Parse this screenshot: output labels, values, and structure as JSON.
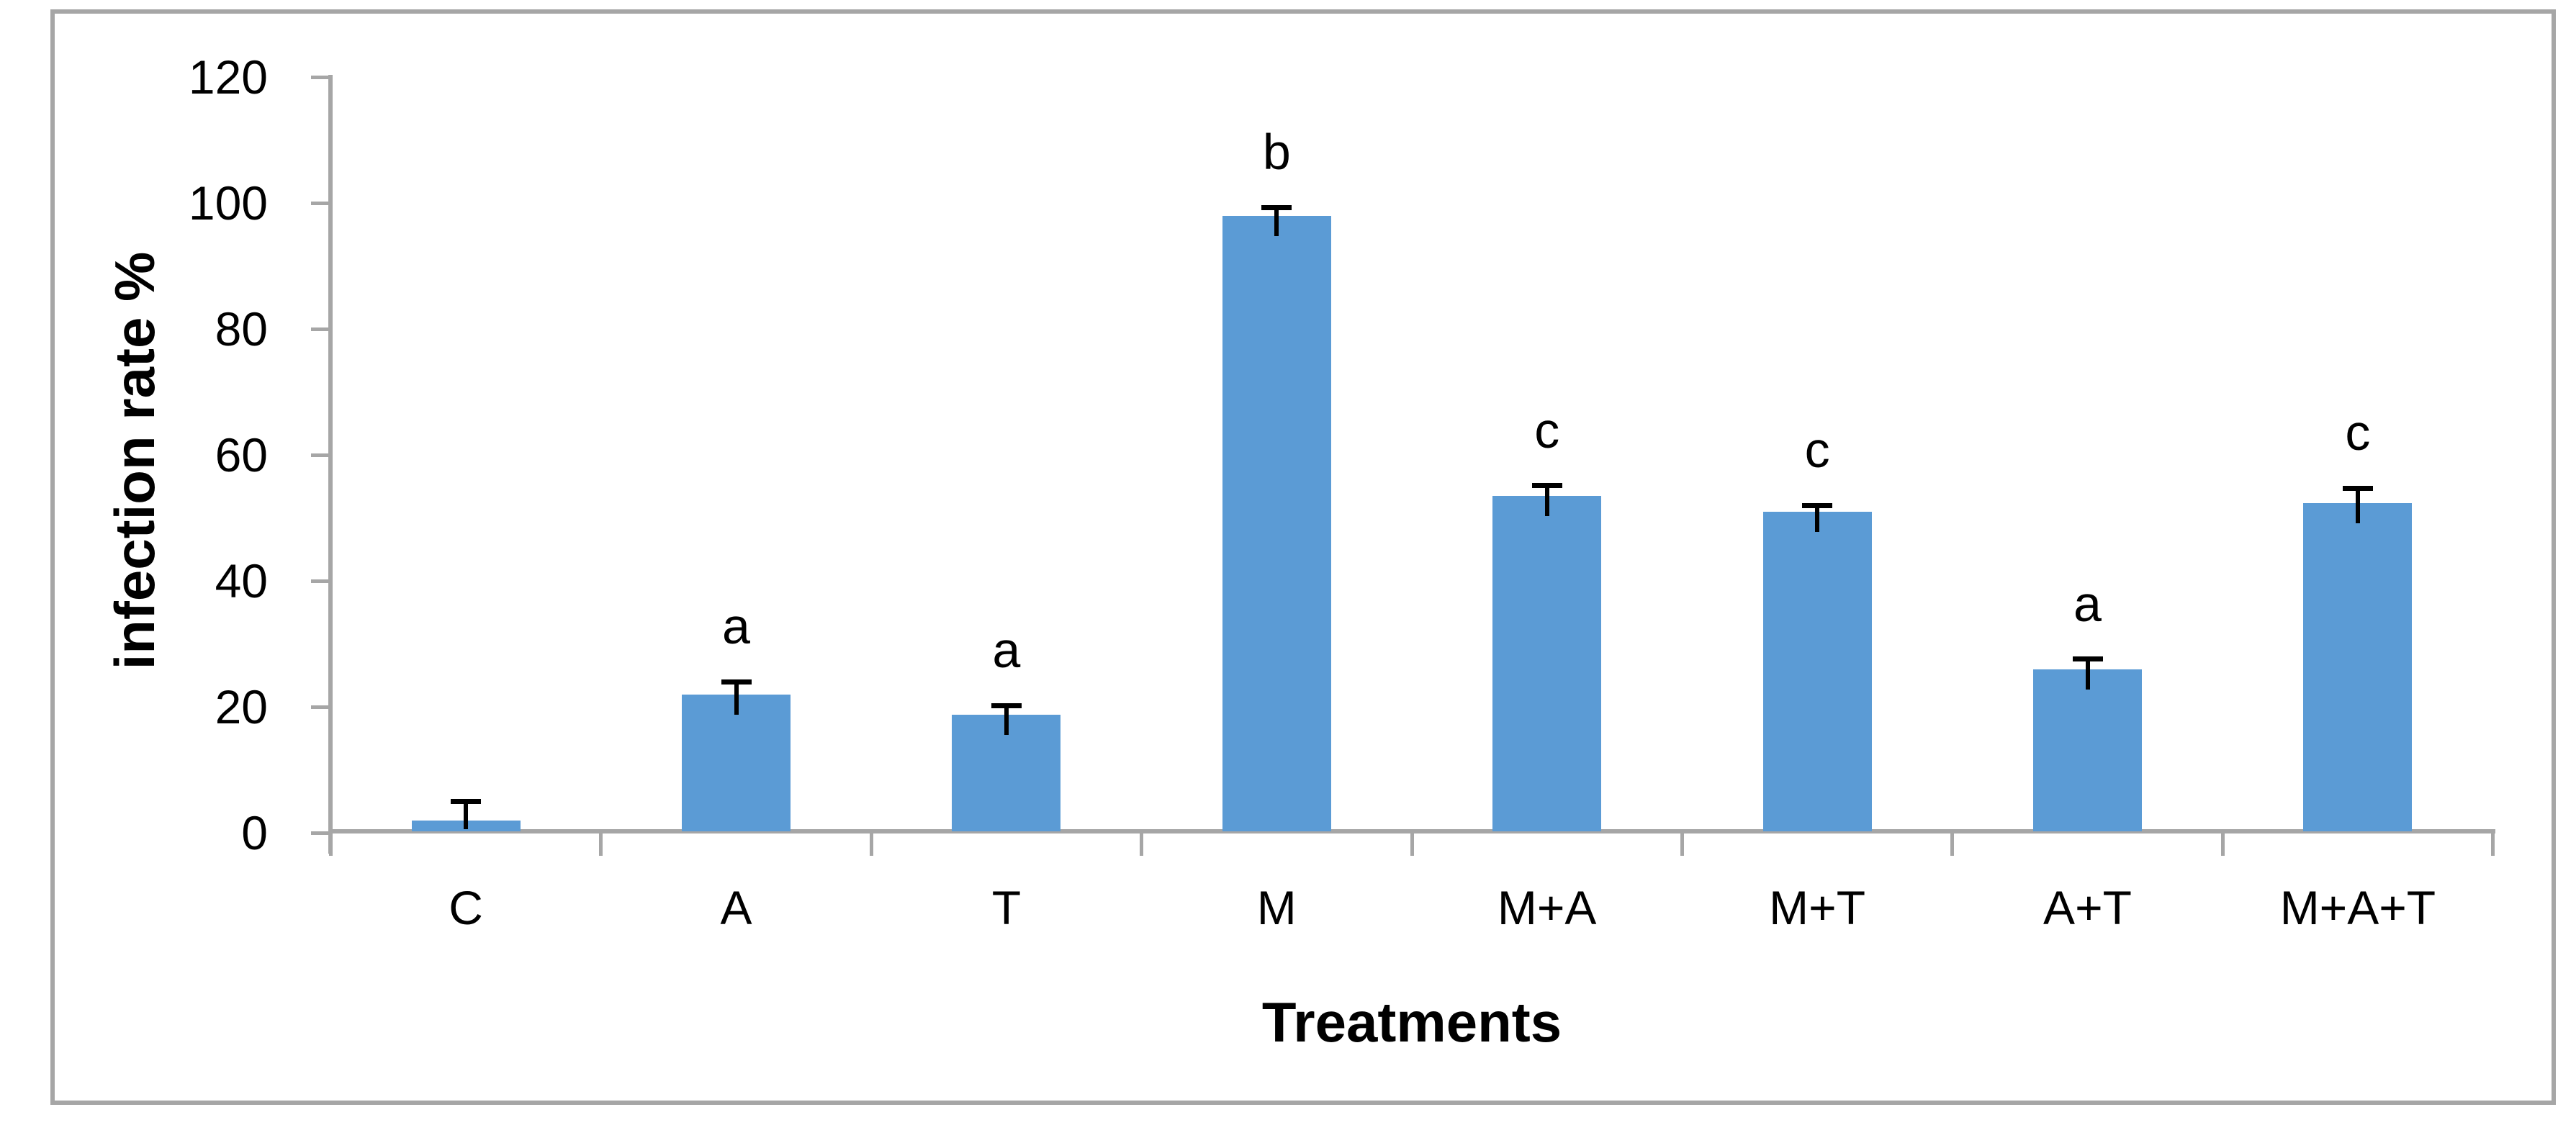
{
  "chart_data": {
    "type": "bar",
    "title": "",
    "xlabel": "Treatments",
    "ylabel": "infection rate %",
    "categories": [
      "C",
      "A",
      "T",
      "M",
      "M+A",
      "M+T",
      "A+T",
      "M+A+T"
    ],
    "values": [
      2,
      22,
      18.7,
      98,
      53.5,
      51,
      26,
      52.4
    ],
    "error_plus": [
      3,
      2,
      1.5,
      1.3,
      1.6,
      1,
      1.6,
      2.3
    ],
    "sig_letters": [
      "",
      "a",
      "a",
      "b",
      "c",
      "c",
      "a",
      "c"
    ],
    "yticks": [
      0,
      20,
      40,
      60,
      80,
      100,
      120
    ],
    "ylim": [
      0,
      120
    ],
    "grid": "off",
    "legend": "none",
    "bar_color": "#5B9BD5",
    "axis_color": "#A6A6A6",
    "error_bar_color": "#000000",
    "text_color": "#000000",
    "border_color": "#A6A6A6",
    "background_color": "#FFFFFF"
  }
}
